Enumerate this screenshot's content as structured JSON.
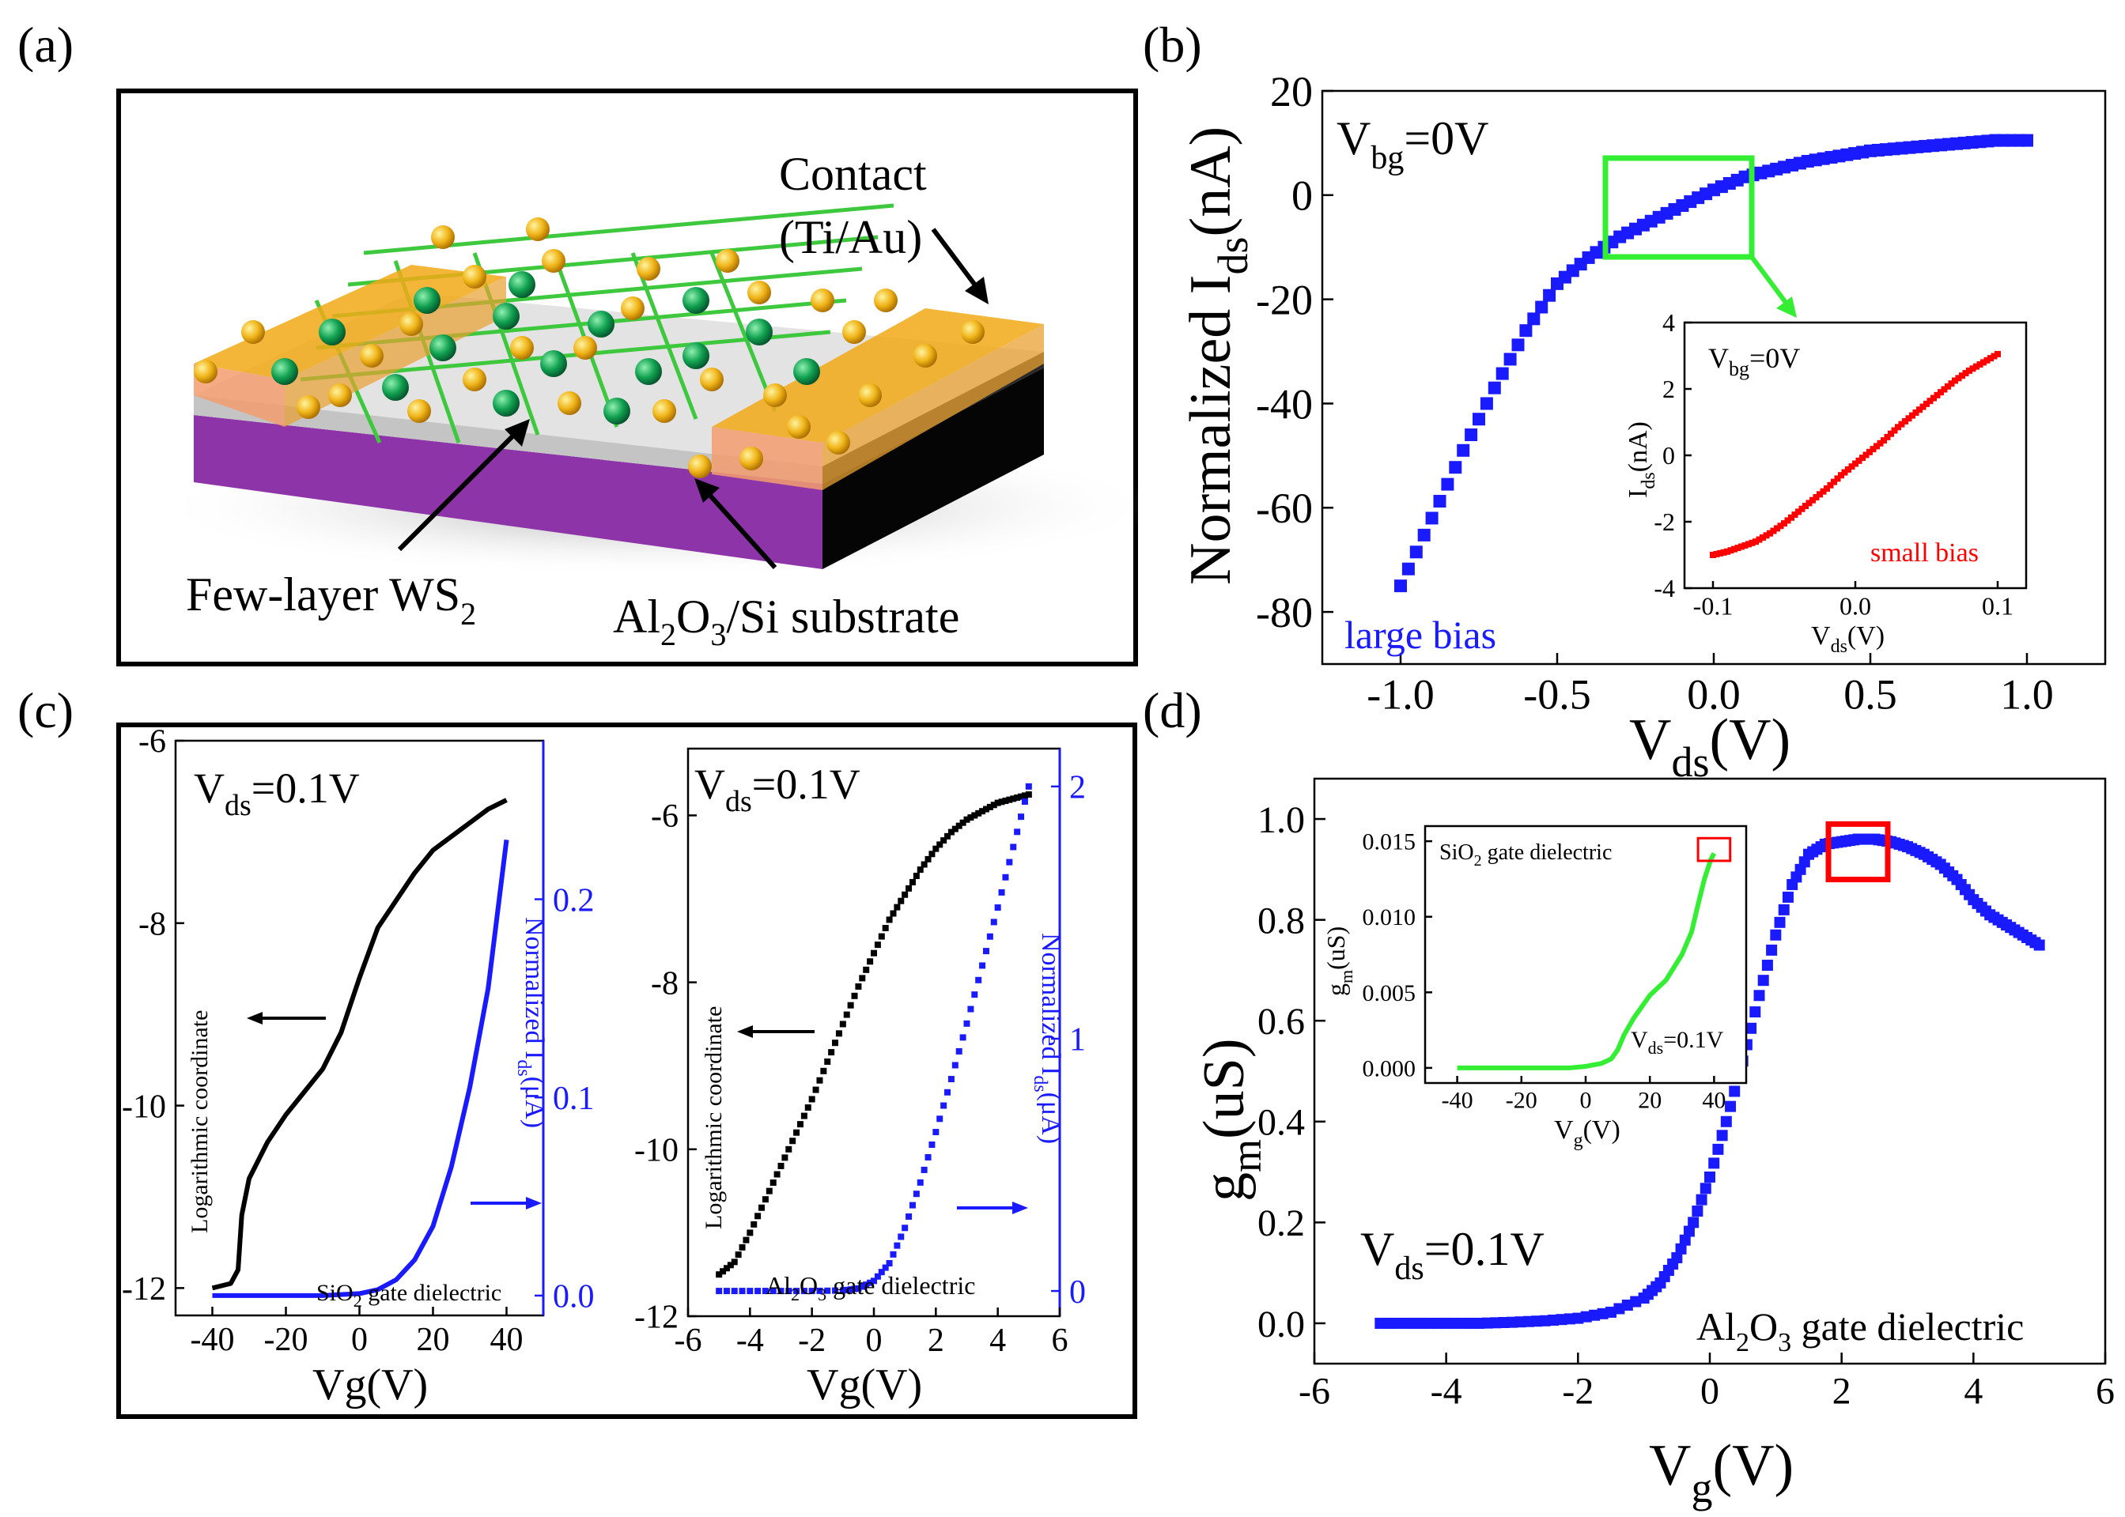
{
  "panel_labels": {
    "a": "(a)",
    "b": "(b)",
    "c": "(c)",
    "d": "(d)"
  },
  "colors": {
    "blue": "#1a1aff",
    "red": "#ff0000",
    "green": "#33ee33",
    "black": "#000000"
  },
  "device": {
    "contact_label_1": "Contact",
    "contact_label_2": "(Ti/Au)",
    "channel_label": "Few-layer WS",
    "channel_sub": "2",
    "substrate_al": "Al",
    "substrate_2": "2",
    "substrate_o": "O",
    "substrate_3": "3",
    "substrate_rest": "/Si substrate"
  },
  "chart_data": [
    {
      "id": "b-main",
      "type": "scatter",
      "series_name": "large bias",
      "color": "#1a1aff",
      "xlabel": "V",
      "xlabel_sub": "ds",
      "xlabel_unit": "(V)",
      "ylabel": "Normalized I",
      "ylabel_sub": "ds",
      "ylabel_unit": "(nA)",
      "annotation": "V",
      "annotation_sub": "bg",
      "annotation_rest": "=0V",
      "xlim": [
        -1.25,
        1.25
      ],
      "ylim": [
        -90,
        20
      ],
      "xticks": [
        "-1.0",
        "-0.5",
        "0.0",
        "0.5",
        "1.0"
      ],
      "xtick_values": [
        -1.0,
        -0.5,
        0.0,
        0.5,
        1.0
      ],
      "yticks": [
        "-80",
        "-60",
        "-40",
        "-20",
        "0",
        "20"
      ],
      "ytick_values": [
        -80,
        -60,
        -40,
        -20,
        0,
        20
      ],
      "x": [
        -1.0,
        -0.9,
        -0.8,
        -0.7,
        -0.6,
        -0.5,
        -0.4,
        -0.3,
        -0.2,
        -0.1,
        0.0,
        0.1,
        0.2,
        0.3,
        0.4,
        0.5,
        0.6,
        0.7,
        0.8,
        0.9,
        1.0
      ],
      "y": [
        -75,
        -62,
        -49,
        -37,
        -26,
        -17,
        -12,
        -8,
        -5,
        -2,
        1,
        3.5,
        5,
        6.5,
        7.5,
        8.5,
        9,
        9.5,
        10,
        10.5,
        10.5
      ]
    },
    {
      "id": "b-inset",
      "type": "scatter",
      "series_name": "small bias",
      "color": "#ff0000",
      "xlabel": "V",
      "xlabel_sub": "ds",
      "xlabel_unit": "(V)",
      "ylabel": "I",
      "ylabel_sub": "ds",
      "ylabel_unit": "(nA)",
      "annotation": "V",
      "annotation_sub": "bg",
      "annotation_rest": "=0V",
      "xlim": [
        -0.12,
        0.12
      ],
      "ylim": [
        -4,
        4
      ],
      "xticks": [
        "-0.1",
        "0.0",
        "0.1"
      ],
      "xtick_values": [
        -0.1,
        0.0,
        0.1
      ],
      "yticks": [
        "-4",
        "-2",
        "0",
        "2",
        "4"
      ],
      "ytick_values": [
        -4,
        -2,
        0,
        2,
        4
      ],
      "x": [
        -0.1,
        -0.09,
        -0.08,
        -0.07,
        -0.06,
        -0.05,
        -0.04,
        -0.03,
        -0.02,
        -0.01,
        0.0,
        0.01,
        0.02,
        0.03,
        0.04,
        0.05,
        0.06,
        0.07,
        0.08,
        0.09,
        0.1
      ],
      "y": [
        -3.0,
        -2.9,
        -2.75,
        -2.6,
        -2.35,
        -2.05,
        -1.7,
        -1.35,
        -1.0,
        -0.6,
        -0.25,
        0.1,
        0.45,
        0.85,
        1.2,
        1.55,
        1.9,
        2.25,
        2.55,
        2.8,
        3.05
      ]
    },
    {
      "id": "c-left",
      "type": "line",
      "xlabel": "Vg(V)",
      "annotation": "V",
      "annotation_sub": "ds",
      "annotation_rest": "=0.1V",
      "left_axis_label": "Logarithmic coordinate",
      "right_axis_label": "Normalized I",
      "right_axis_sub": "ds",
      "right_axis_unit": "(μA)",
      "dielectric_pre": "SiO",
      "dielectric_sub": "2",
      "dielectric_post": " gate dielectric",
      "xlim": [
        -50,
        50
      ],
      "ylim_left": [
        -12.3,
        -6
      ],
      "ylim_right": [
        -0.01,
        0.28
      ],
      "xticks": [
        "-40",
        "-20",
        "0",
        "20",
        "40"
      ],
      "xtick_values": [
        -40,
        -20,
        0,
        20,
        40
      ],
      "yticks_left": [
        "-6",
        "-8",
        "-10",
        "-12"
      ],
      "ytick_values_left": [
        -6,
        -8,
        -10,
        -12
      ],
      "yticks_right": [
        "0.0",
        "0.1",
        "0.2"
      ],
      "ytick_values_right": [
        0,
        0.1,
        0.2
      ],
      "series": [
        {
          "name": "log",
          "axis": "left",
          "color": "#000000",
          "x": [
            -40,
            -35,
            -33,
            -32,
            -30,
            -25,
            -20,
            -15,
            -10,
            -5,
            0,
            5,
            10,
            15,
            20,
            25,
            30,
            35,
            40
          ],
          "y": [
            -12,
            -11.95,
            -11.8,
            -11.2,
            -10.8,
            -10.4,
            -10.1,
            -9.85,
            -9.6,
            -9.2,
            -8.6,
            -8.05,
            -7.75,
            -7.45,
            -7.2,
            -7.05,
            -6.9,
            -6.75,
            -6.65
          ]
        },
        {
          "name": "linear",
          "axis": "right",
          "color": "#1a1aff",
          "x": [
            -40,
            -30,
            -20,
            -10,
            0,
            5,
            10,
            15,
            20,
            25,
            30,
            35,
            40
          ],
          "y": [
            0,
            0,
            0,
            0,
            0.001,
            0.003,
            0.008,
            0.018,
            0.035,
            0.065,
            0.105,
            0.155,
            0.23
          ]
        }
      ]
    },
    {
      "id": "c-right",
      "type": "scatter",
      "xlabel": "Vg(V)",
      "annotation": "V",
      "annotation_sub": "ds",
      "annotation_rest": "=0.1V",
      "left_axis_label": "Logarithmic coordinate",
      "right_axis_label": "Normalized I",
      "right_axis_sub": "ds",
      "right_axis_unit": "(μA)",
      "dielectric_pre": "Al",
      "dielectric_sub": "2",
      "dielectric_mid": "O",
      "dielectric_sub2": "3",
      "dielectric_post": " gate dielectric",
      "xlim": [
        -6,
        6
      ],
      "ylim_left": [
        -12,
        -5.2
      ],
      "ylim_right": [
        -0.1,
        2.15
      ],
      "xticks": [
        "-6",
        "-4",
        "-2",
        "0",
        "2",
        "4",
        "6"
      ],
      "xtick_values": [
        -6,
        -4,
        -2,
        0,
        2,
        4,
        6
      ],
      "yticks_left": [
        "-6",
        "-8",
        "-10",
        "-12"
      ],
      "ytick_values_left": [
        -6,
        -8,
        -10,
        -12
      ],
      "yticks_right": [
        "0",
        "1",
        "2"
      ],
      "ytick_values_right": [
        0,
        1,
        2
      ],
      "series": [
        {
          "name": "log",
          "axis": "left",
          "color": "#000000",
          "x": [
            -5,
            -4.5,
            -4,
            -3.5,
            -3,
            -2.5,
            -2,
            -1.5,
            -1,
            -0.5,
            0,
            0.5,
            1,
            1.5,
            2,
            2.5,
            3,
            3.5,
            4,
            4.5,
            5
          ],
          "y": [
            -11.5,
            -11.35,
            -11.0,
            -10.6,
            -10.2,
            -9.8,
            -9.4,
            -8.95,
            -8.5,
            -8.05,
            -7.65,
            -7.25,
            -6.95,
            -6.65,
            -6.4,
            -6.2,
            -6.05,
            -5.95,
            -5.85,
            -5.8,
            -5.75
          ]
        },
        {
          "name": "linear",
          "axis": "right",
          "color": "#1a1aff",
          "x": [
            -5,
            -4,
            -3,
            -2,
            -1,
            -0.5,
            0,
            0.5,
            1,
            1.5,
            2,
            2.5,
            3,
            3.5,
            4,
            4.5,
            5
          ],
          "y": [
            0,
            0,
            0,
            0,
            0.002,
            0.01,
            0.04,
            0.11,
            0.25,
            0.43,
            0.63,
            0.84,
            1.06,
            1.29,
            1.52,
            1.76,
            2.0
          ]
        }
      ]
    },
    {
      "id": "d-main",
      "type": "scatter",
      "color": "#1a1aff",
      "xlabel": "V",
      "xlabel_sub": "g",
      "xlabel_unit": "(V)",
      "ylabel": "g",
      "ylabel_sub": "m",
      "ylabel_unit": "(uS)",
      "annotation": "V",
      "annotation_sub": "ds",
      "annotation_rest": "=0.1V",
      "dielectric_pre": "Al",
      "dielectric_sub": "2",
      "dielectric_mid": "O",
      "dielectric_sub2": "3",
      "dielectric_post": " gate dielectric",
      "xlim": [
        -6,
        6
      ],
      "ylim": [
        -0.08,
        1.08
      ],
      "xticks": [
        "-6",
        "-4",
        "-2",
        "0",
        "2",
        "4",
        "6"
      ],
      "xtick_values": [
        -6,
        -4,
        -2,
        0,
        2,
        4,
        6
      ],
      "yticks": [
        "0.0",
        "0.2",
        "0.4",
        "0.6",
        "0.8",
        "1.0"
      ],
      "ytick_values": [
        0,
        0.2,
        0.4,
        0.6,
        0.8,
        1.0
      ],
      "highlight_x": [
        1.8,
        2.7
      ],
      "highlight_y": [
        0.88,
        0.99
      ],
      "x": [
        -5,
        -4.5,
        -4,
        -3.5,
        -3,
        -2.5,
        -2,
        -1.5,
        -1,
        -0.75,
        -0.5,
        -0.25,
        0,
        0.25,
        0.5,
        0.75,
        1.0,
        1.25,
        1.5,
        1.75,
        2.0,
        2.25,
        2.5,
        2.75,
        3.0,
        3.25,
        3.5,
        3.75,
        4.0,
        4.25,
        4.5,
        4.75,
        5.0
      ],
      "y": [
        0,
        0,
        0,
        0,
        0.002,
        0.005,
        0.01,
        0.022,
        0.05,
        0.08,
        0.13,
        0.2,
        0.29,
        0.4,
        0.52,
        0.65,
        0.77,
        0.87,
        0.93,
        0.95,
        0.955,
        0.96,
        0.96,
        0.955,
        0.945,
        0.93,
        0.91,
        0.88,
        0.84,
        0.81,
        0.79,
        0.77,
        0.75
      ]
    },
    {
      "id": "d-inset",
      "type": "line",
      "color": "#33ee33",
      "xlabel": "V",
      "xlabel_sub": "g",
      "xlabel_unit": "(V)",
      "ylabel": "g",
      "ylabel_sub": "m",
      "ylabel_unit": "(uS)",
      "annotation": "V",
      "annotation_sub": "ds",
      "annotation_rest": "=0.1V",
      "dielectric_pre": "SiO",
      "dielectric_sub": "2",
      "dielectric_post": " gate dielectric",
      "xlim": [
        -50,
        50
      ],
      "ylim": [
        -0.001,
        0.016
      ],
      "xticks": [
        "-40",
        "-20",
        "0",
        "20",
        "40"
      ],
      "xtick_values": [
        -40,
        -20,
        0,
        20,
        40
      ],
      "yticks": [
        "0.000",
        "0.005",
        "0.010",
        "0.015"
      ],
      "ytick_values": [
        0,
        0.005,
        0.01,
        0.015
      ],
      "highlight_x": [
        35,
        45
      ],
      "highlight_y": [
        0.0137,
        0.0152
      ],
      "x": [
        -40,
        -30,
        -20,
        -10,
        -5,
        0,
        5,
        8,
        10,
        12,
        15,
        18,
        20,
        25,
        30,
        33,
        35,
        37,
        39,
        40
      ],
      "y": [
        0,
        0,
        0,
        0,
        0,
        0.0001,
        0.0003,
        0.0006,
        0.0012,
        0.0022,
        0.0033,
        0.0042,
        0.0048,
        0.0058,
        0.0075,
        0.009,
        0.0108,
        0.0125,
        0.0138,
        0.0142
      ]
    }
  ]
}
